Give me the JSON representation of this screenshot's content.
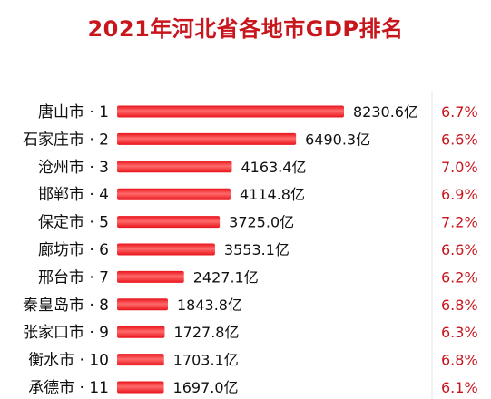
{
  "chart_data": {
    "type": "bar",
    "orientation": "horizontal",
    "title": "2021年河北省各地市GDP排名",
    "xlabel": "",
    "ylabel": "",
    "xlim": [
      0,
      8500
    ],
    "grid": false,
    "legend": "none",
    "colors": {
      "bar": "#e8141b",
      "bar_highlight": "#ff6a6a",
      "title": "#c8161d",
      "growth": "#c8161d"
    },
    "categories": [
      "唐山市 · 1",
      "石家庄市 · 2",
      "沧州市 · 3",
      "邯郸市 · 4",
      "保定市 · 5",
      "廊坊市 · 6",
      "邢台市 · 7",
      "秦皇岛市 · 8",
      "张家口市 · 9",
      "衡水市 · 10",
      "承德市 · 11"
    ],
    "values": [
      8230.6,
      6490.3,
      4163.4,
      4114.8,
      3725.0,
      3553.1,
      2427.1,
      1843.8,
      1727.8,
      1703.1,
      1697.0
    ],
    "value_labels": [
      "8230.6亿",
      "6490.3亿",
      "4163.4亿",
      "4114.8亿",
      "3725.0亿",
      "3553.1亿",
      "2427.1亿",
      "1843.8亿",
      "1727.8亿",
      "1703.1亿",
      "1697.0亿"
    ],
    "growth_labels": [
      "6.7%",
      "6.6%",
      "7.0%",
      "6.9%",
      "7.2%",
      "6.6%",
      "6.2%",
      "6.8%",
      "6.3%",
      "6.8%",
      "6.1%"
    ]
  }
}
